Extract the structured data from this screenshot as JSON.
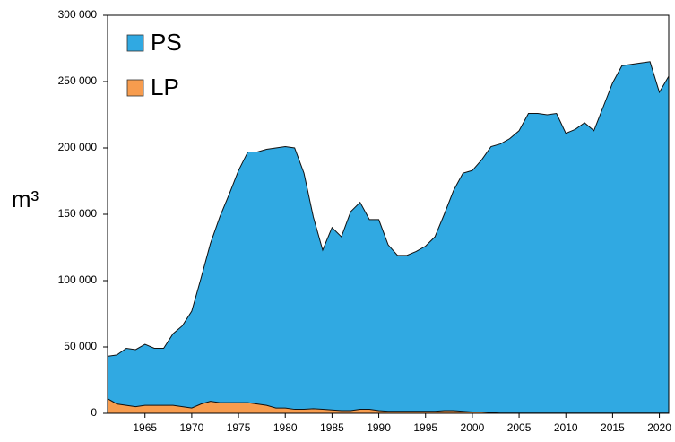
{
  "chart_data": {
    "type": "area",
    "x": [
      1961,
      1962,
      1963,
      1964,
      1965,
      1966,
      1967,
      1968,
      1969,
      1970,
      1971,
      1972,
      1973,
      1974,
      1975,
      1976,
      1977,
      1978,
      1979,
      1980,
      1981,
      1982,
      1983,
      1984,
      1985,
      1986,
      1987,
      1988,
      1989,
      1990,
      1991,
      1992,
      1993,
      1994,
      1995,
      1996,
      1997,
      1998,
      1999,
      2000,
      2001,
      2002,
      2003,
      2004,
      2005,
      2006,
      2007,
      2008,
      2009,
      2010,
      2011,
      2012,
      2013,
      2014,
      2015,
      2016,
      2017,
      2018,
      2019,
      2020,
      2021
    ],
    "series": [
      {
        "name": "PS",
        "color": "#30a9e2",
        "values": [
          43000,
          44000,
          49000,
          48000,
          52000,
          49000,
          49000,
          60000,
          66000,
          77000,
          102000,
          128000,
          148000,
          165000,
          183000,
          197000,
          197000,
          199000,
          200000,
          201000,
          200000,
          181000,
          148000,
          123000,
          140000,
          133000,
          152000,
          159000,
          146000,
          146000,
          127000,
          119000,
          119000,
          122000,
          126000,
          133000,
          150000,
          168000,
          181000,
          183000,
          191000,
          201000,
          203000,
          207000,
          213000,
          226000,
          226000,
          225000,
          226000,
          211000,
          214000,
          219000,
          213000,
          231000,
          249000,
          262000,
          263000,
          264000,
          265000,
          242000,
          254000
        ]
      },
      {
        "name": "LP",
        "color": "#f79c4e",
        "values": [
          11000,
          7000,
          6000,
          5000,
          6000,
          6000,
          6000,
          6000,
          5000,
          4000,
          7000,
          9000,
          8000,
          8000,
          8000,
          8000,
          7000,
          6000,
          4000,
          4000,
          3000,
          3000,
          3500,
          3000,
          2500,
          2000,
          2000,
          3000,
          3000,
          2000,
          1500,
          1500,
          1500,
          1500,
          1500,
          1500,
          2000,
          2000,
          1500,
          1000,
          1000,
          500,
          200,
          200,
          200,
          200,
          200,
          200,
          200,
          200,
          200,
          200,
          200,
          200,
          200,
          200,
          200,
          200,
          200,
          200,
          200
        ]
      }
    ],
    "ylabel": "m³",
    "xlim": [
      1961,
      2021
    ],
    "xticks": [
      1965,
      1970,
      1975,
      1980,
      1985,
      1990,
      1995,
      2000,
      2005,
      2010,
      2015,
      2020
    ],
    "ylim": [
      0,
      300000
    ],
    "yticks": [
      0,
      {
        "value": 50000,
        "label": "50 000"
      },
      {
        "value": 100000,
        "label": "100 000"
      },
      {
        "value": 150000,
        "label": "150 000"
      },
      {
        "value": 200000,
        "label": "200 000"
      },
      {
        "value": 250000,
        "label": "250 000"
      },
      {
        "value": 300000,
        "label": "300 000"
      }
    ],
    "legend": "upper left"
  }
}
